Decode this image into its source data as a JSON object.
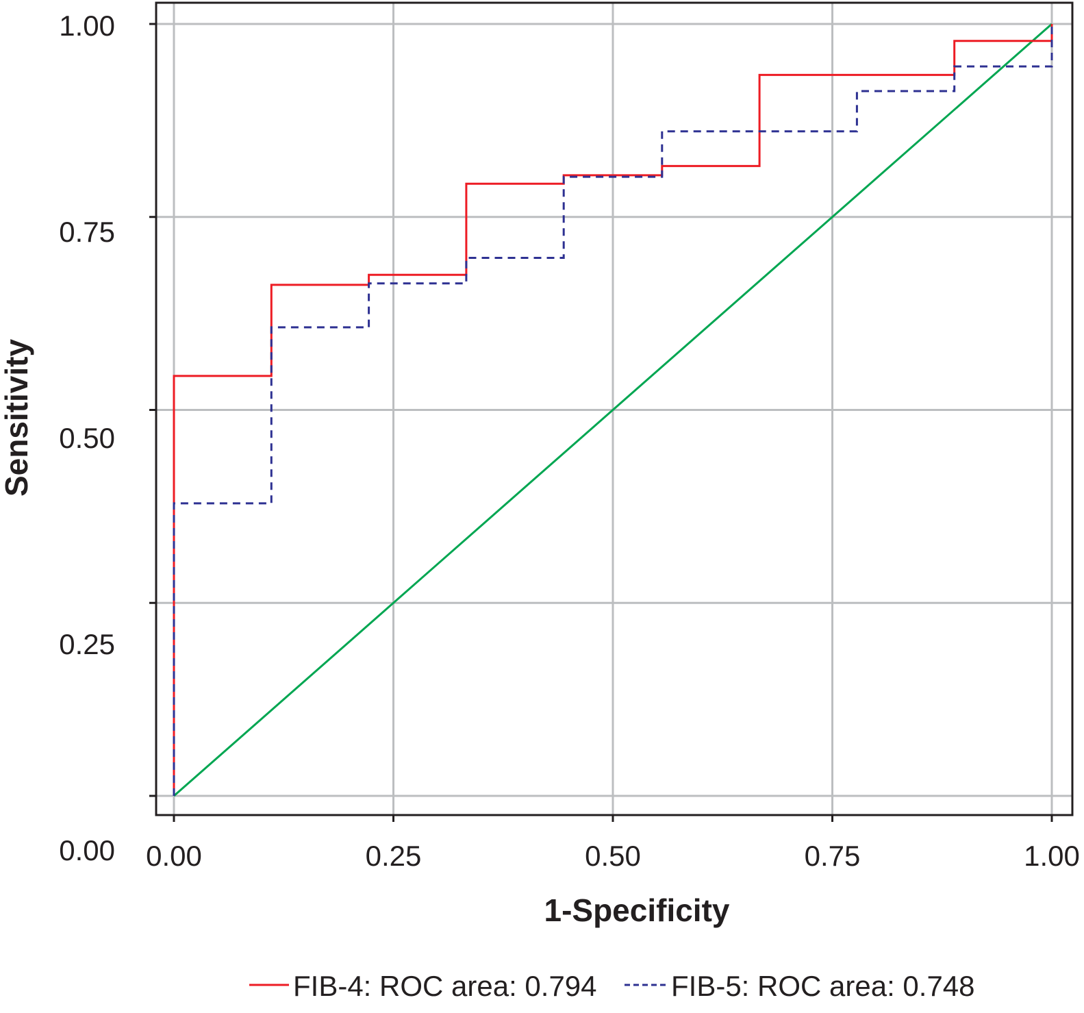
{
  "chart_data": {
    "type": "line",
    "title": "",
    "xlabel": "1-Specificity",
    "ylabel": "Sensitivity",
    "xlim": [
      0,
      1
    ],
    "ylim": [
      0,
      1
    ],
    "x_ticks": [
      "0.00",
      "0.25",
      "0.50",
      "0.75",
      "1.00"
    ],
    "y_ticks": [
      "0.00",
      "0.25",
      "0.50",
      "0.75",
      "1.00"
    ],
    "grid": true,
    "legend_position": "bottom",
    "series": [
      {
        "name": "FIB-4: ROC area: 0.794",
        "color": "#ed1c24",
        "style": "solid",
        "points": [
          [
            0,
            0
          ],
          [
            0,
            0.544
          ],
          [
            0.111,
            0.544
          ],
          [
            0.111,
            0.662
          ],
          [
            0.222,
            0.662
          ],
          [
            0.222,
            0.675
          ],
          [
            0.333,
            0.675
          ],
          [
            0.333,
            0.793
          ],
          [
            0.444,
            0.793
          ],
          [
            0.444,
            0.804
          ],
          [
            0.556,
            0.804
          ],
          [
            0.556,
            0.816
          ],
          [
            0.667,
            0.816
          ],
          [
            0.667,
            0.934
          ],
          [
            0.889,
            0.934
          ],
          [
            0.889,
            0.978
          ],
          [
            1,
            0.978
          ],
          [
            1,
            1
          ]
        ]
      },
      {
        "name": "FIB-5: ROC area: 0.748",
        "color": "#2e3192",
        "style": "dashed",
        "points": [
          [
            0,
            0
          ],
          [
            0,
            0.379
          ],
          [
            0.111,
            0.379
          ],
          [
            0.111,
            0.607
          ],
          [
            0.222,
            0.607
          ],
          [
            0.222,
            0.664
          ],
          [
            0.333,
            0.664
          ],
          [
            0.333,
            0.697
          ],
          [
            0.444,
            0.697
          ],
          [
            0.444,
            0.802
          ],
          [
            0.556,
            0.802
          ],
          [
            0.556,
            0.861
          ],
          [
            0.778,
            0.861
          ],
          [
            0.778,
            0.913
          ],
          [
            0.889,
            0.913
          ],
          [
            0.889,
            0.945
          ],
          [
            1,
            0.945
          ],
          [
            1,
            1
          ]
        ]
      },
      {
        "color": "#00a651",
        "style": "solid",
        "points": [
          [
            0,
            0
          ],
          [
            1,
            1
          ]
        ]
      }
    ]
  }
}
